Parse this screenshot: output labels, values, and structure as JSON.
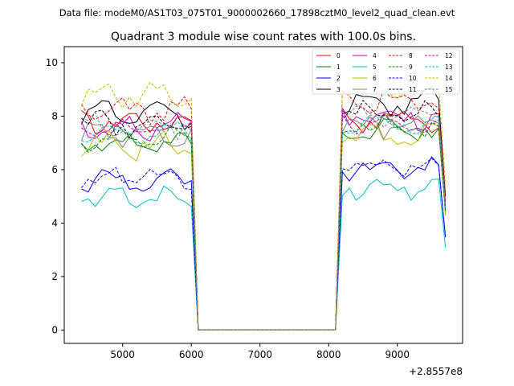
{
  "chart_data": {
    "type": "line",
    "suptitle": "Data file: modeM0/AS1T03_075T01_9000002660_17898cztM0_level2_quad_clean.evt",
    "title": "Quadrant 3 module wise count rates with 100.0s bins.",
    "xlabel": "",
    "ylabel": "",
    "x_offset_label": "+2.8557e8",
    "xlim": [
      4150,
      9950
    ],
    "ylim": [
      -0.5,
      10.6
    ],
    "xticks": [
      5000,
      6000,
      7000,
      8000,
      9000
    ],
    "yticks": [
      0,
      2,
      4,
      6,
      8,
      10
    ],
    "xtick_labels": [
      "5000",
      "6000",
      "7000",
      "8000",
      "9000"
    ],
    "ytick_labels": [
      "0",
      "2",
      "4",
      "6",
      "8",
      "10"
    ],
    "grid": false,
    "legend": {
      "location": "top-right",
      "columns": 4
    },
    "x_segments": {
      "start": 4400,
      "step": 100,
      "gap_start": 6000,
      "gap_end": 8100,
      "resume": 8200,
      "end": 9700
    },
    "series": [
      {
        "name": "0",
        "color": "#ff0000",
        "dash": "solid",
        "level1": 7.8,
        "level2": 7.9,
        "amp": 0.3,
        "phase": 0.0
      },
      {
        "name": "1",
        "color": "#008000",
        "dash": "solid",
        "level1": 7.0,
        "level2": 7.5,
        "amp": 0.3,
        "phase": 1.1
      },
      {
        "name": "2",
        "color": "#0000ff",
        "dash": "solid",
        "level1": 5.6,
        "level2": 6.0,
        "amp": 0.25,
        "phase": 2.2
      },
      {
        "name": "3",
        "color": "#000000",
        "dash": "solid",
        "level1": 8.1,
        "level2": 8.5,
        "amp": 0.35,
        "phase": 3.3
      },
      {
        "name": "4",
        "color": "#c000c0",
        "dash": "solid",
        "level1": 7.6,
        "level2": 8.0,
        "amp": 0.3,
        "phase": 0.7
      },
      {
        "name": "5",
        "color": "#00bfbf",
        "dash": "solid",
        "level1": 5.0,
        "level2": 5.3,
        "amp": 0.25,
        "phase": 1.8
      },
      {
        "name": "6",
        "color": "#bfbf00",
        "dash": "solid",
        "level1": 6.9,
        "level2": 7.2,
        "amp": 0.35,
        "phase": 2.9
      },
      {
        "name": "7",
        "color": "#808080",
        "dash": "solid",
        "level1": 7.3,
        "level2": 7.6,
        "amp": 0.3,
        "phase": 4.0
      },
      {
        "name": "8",
        "color": "#ff0000",
        "dash": "dashed",
        "level1": 8.2,
        "level2": 8.6,
        "amp": 0.3,
        "phase": 0.4
      },
      {
        "name": "9",
        "color": "#008000",
        "dash": "dashed",
        "level1": 7.2,
        "level2": 7.6,
        "amp": 0.3,
        "phase": 1.5
      },
      {
        "name": "10",
        "color": "#0000ff",
        "dash": "dashed",
        "level1": 5.7,
        "level2": 6.1,
        "amp": 0.25,
        "phase": 2.6
      },
      {
        "name": "11",
        "color": "#000000",
        "dash": "dashed",
        "level1": 7.7,
        "level2": 8.1,
        "amp": 0.3,
        "phase": 3.7
      },
      {
        "name": "12",
        "color": "#c000c0",
        "dash": "dashed",
        "level1": 7.5,
        "level2": 7.8,
        "amp": 0.3,
        "phase": 0.9
      },
      {
        "name": "13",
        "color": "#00bfbf",
        "dash": "dashed",
        "level1": 7.4,
        "level2": 7.7,
        "amp": 0.3,
        "phase": 2.0
      },
      {
        "name": "14",
        "color": "#bfbf00",
        "dash": "dashed",
        "level1": 8.8,
        "level2": 9.0,
        "amp": 0.35,
        "phase": 3.1
      },
      {
        "name": "15",
        "color": "#808080",
        "dash": "dashed",
        "level1": 7.6,
        "level2": 8.0,
        "amp": 0.3,
        "phase": 4.2
      }
    ]
  }
}
